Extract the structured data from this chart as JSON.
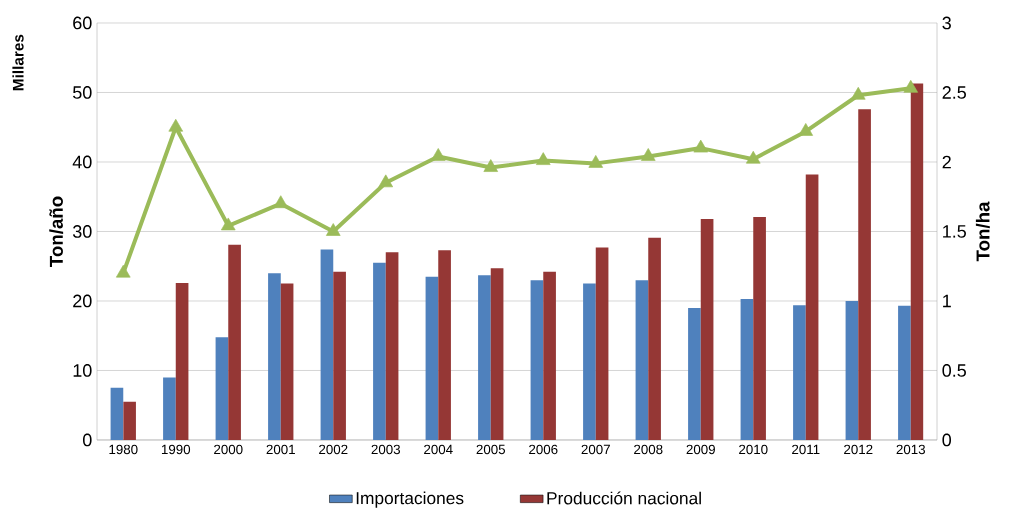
{
  "chart_data": {
    "type": "bar",
    "categories": [
      "1980",
      "1990",
      "2000",
      "2001",
      "2002",
      "2003",
      "2004",
      "2005",
      "2006",
      "2007",
      "2008",
      "2009",
      "2010",
      "2011",
      "2012",
      "2013"
    ],
    "series": [
      {
        "name": "Importaciones",
        "color": "#4f81bd",
        "values": [
          7.5,
          9,
          14.8,
          24,
          27.4,
          25.5,
          23.5,
          23.7,
          23,
          22.5,
          23,
          19,
          20.3,
          19.4,
          20,
          19.3
        ]
      },
      {
        "name": "Producción nacional",
        "color": "#953735",
        "values": [
          5.5,
          22.6,
          28.1,
          22.5,
          24.2,
          27,
          27.3,
          24.7,
          24.2,
          27.7,
          29.1,
          31.8,
          32.1,
          38.2,
          47.6,
          51.3
        ]
      },
      {
        "type": "line",
        "axis": "y2",
        "color": "#9bbb59",
        "marker": "triangle",
        "values": [
          1.2,
          2.25,
          1.54,
          1.7,
          1.5,
          1.85,
          2.04,
          1.96,
          2.01,
          1.99,
          2.04,
          2.1,
          2.02,
          2.22,
          2.48,
          2.53
        ]
      }
    ],
    "ylabel": "Ton/año",
    "y2label": "Ton/ha",
    "annotations": [
      "Millares"
    ],
    "ylim": [
      0,
      60
    ],
    "yticks": [
      0,
      10,
      20,
      30,
      40,
      50,
      60
    ],
    "y2lim": [
      0,
      3
    ],
    "y2ticks": [
      0,
      0.5,
      1,
      1.5,
      2,
      2.5,
      3
    ],
    "grid": "y",
    "legend": "bottom"
  }
}
